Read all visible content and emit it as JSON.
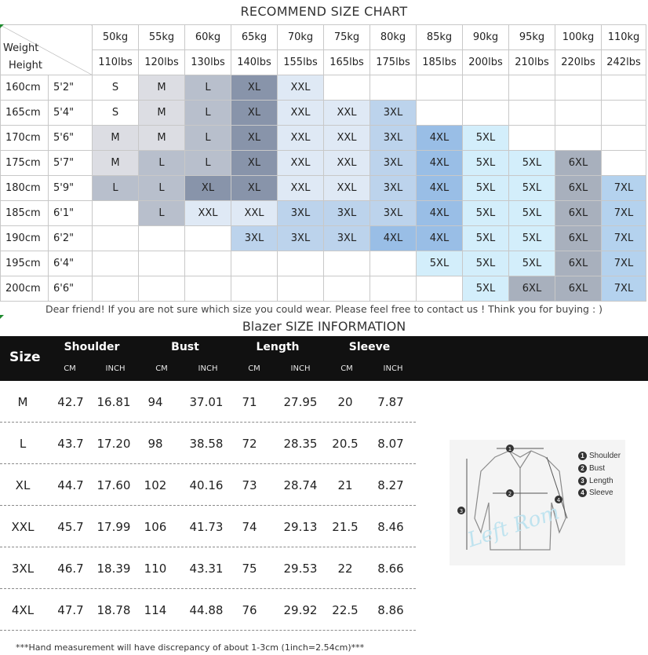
{
  "size_chart": {
    "title": "RECOMMEND SIZE CHART",
    "corner_weight": "Weight",
    "corner_height": "Height",
    "kg": [
      "50kg",
      "55kg",
      "60kg",
      "65kg",
      "70kg",
      "75kg",
      "80kg",
      "85kg",
      "90kg",
      "95kg",
      "100kg",
      "110kg"
    ],
    "lbs": [
      "110lbs",
      "120lbs",
      "130lbs",
      "140lbs",
      "155lbs",
      "165lbs",
      "175lbs",
      "185lbs",
      "200lbs",
      "210lbs",
      "220lbs",
      "242lbs"
    ],
    "rows": [
      {
        "cm": "160cm",
        "ft": "5'2\"",
        "sizes": [
          "S",
          "M",
          "L",
          "XL",
          "XXL",
          "",
          "",
          "",
          "",
          "",
          "",
          ""
        ]
      },
      {
        "cm": "165cm",
        "ft": "5'4\"",
        "sizes": [
          "S",
          "M",
          "L",
          "XL",
          "XXL",
          "XXL",
          "3XL",
          "",
          "",
          "",
          "",
          ""
        ]
      },
      {
        "cm": "170cm",
        "ft": "5'6\"",
        "sizes": [
          "M",
          "M",
          "L",
          "XL",
          "XXL",
          "XXL",
          "3XL",
          "4XL",
          "5XL",
          "",
          "",
          ""
        ]
      },
      {
        "cm": "175cm",
        "ft": "5'7\"",
        "sizes": [
          "M",
          "L",
          "L",
          "XL",
          "XXL",
          "XXL",
          "3XL",
          "4XL",
          "5XL",
          "5XL",
          "6XL",
          ""
        ]
      },
      {
        "cm": "180cm",
        "ft": "5'9\"",
        "sizes": [
          "L",
          "L",
          "XL",
          "XL",
          "XXL",
          "XXL",
          "3XL",
          "4XL",
          "5XL",
          "5XL",
          "6XL",
          "7XL"
        ]
      },
      {
        "cm": "185cm",
        "ft": "6'1\"",
        "sizes": [
          "",
          "L",
          "XXL",
          "XXL",
          "3XL",
          "3XL",
          "3XL",
          "4XL",
          "5XL",
          "5XL",
          "6XL",
          "7XL"
        ]
      },
      {
        "cm": "190cm",
        "ft": "6'2\"",
        "sizes": [
          "",
          "",
          "",
          "3XL",
          "3XL",
          "3XL",
          "4XL",
          "4XL",
          "5XL",
          "5XL",
          "6XL",
          "7XL"
        ]
      },
      {
        "cm": "195cm",
        "ft": "6'4\"",
        "sizes": [
          "",
          "",
          "",
          "",
          "",
          "",
          "",
          "5XL",
          "5XL",
          "5XL",
          "6XL",
          "7XL"
        ]
      },
      {
        "cm": "200cm",
        "ft": "6'6\"",
        "sizes": [
          "",
          "",
          "",
          "",
          "",
          "",
          "",
          "",
          "5XL",
          "6XL",
          "6XL",
          "7XL"
        ]
      }
    ],
    "cell_colors": [
      [
        "S",
        "M",
        "L",
        "XL",
        "XXL",
        "",
        "",
        "",
        "",
        "",
        "",
        ""
      ],
      [
        "S",
        "M",
        "L",
        "XL",
        "",
        "",
        "3XL",
        "",
        "",
        "",
        "",
        ""
      ],
      [
        "M",
        "M",
        "L",
        "XL",
        "",
        "",
        "",
        "4XL",
        "5XL",
        "",
        "",
        ""
      ],
      [
        "M",
        "L",
        "L",
        "XL",
        "",
        "",
        "",
        "4XL",
        "5XL",
        "5XL",
        "6XL",
        ""
      ],
      [
        "L",
        "L",
        "XL",
        "XL",
        "",
        "",
        "",
        "4XL",
        "5XL",
        "5XL",
        "6XL",
        "7XL"
      ],
      [
        "",
        "L",
        "XXL",
        "XXL",
        "",
        "",
        "",
        "4XL",
        "5XL",
        "5XL",
        "6XL",
        "7XL"
      ],
      [
        "",
        "",
        "",
        "3XL",
        "3XL",
        "3XL",
        "4XL",
        "4XL",
        "5XL",
        "5XL",
        "6XL",
        "7XL"
      ],
      [
        "",
        "",
        "",
        "",
        "",
        "",
        "",
        "5XL",
        "5XL",
        "5XL",
        "6XL",
        "7XL"
      ],
      [
        "",
        "",
        "",
        "",
        "",
        "",
        "",
        "",
        "5XL",
        "6XL",
        "6XL",
        "7XL"
      ]
    ],
    "note": "Dear friend! If you are not sure which size you could wear. Please feel free to contact us ! Think you for buying  : )"
  },
  "blazer": {
    "title": "Blazer SIZE INFORMATION",
    "header": {
      "size": "Size",
      "groups": [
        "Shoulder",
        "Bust",
        "Length",
        "Sleeve"
      ],
      "unit_cm": "CM",
      "unit_inch": "INCH"
    },
    "rows": [
      {
        "size": "M",
        "values": [
          "42.7",
          "16.81",
          "94",
          "37.01",
          "71",
          "27.95",
          "20",
          "7.87"
        ]
      },
      {
        "size": "L",
        "values": [
          "43.7",
          "17.20",
          "98",
          "38.58",
          "72",
          "28.35",
          "20.5",
          "8.07"
        ]
      },
      {
        "size": "XL",
        "values": [
          "44.7",
          "17.60",
          "102",
          "40.16",
          "73",
          "28.74",
          "21",
          "8.27"
        ]
      },
      {
        "size": "XXL",
        "values": [
          "45.7",
          "17.99",
          "106",
          "41.73",
          "74",
          "29.13",
          "21.5",
          "8.46"
        ]
      },
      {
        "size": "3XL",
        "values": [
          "46.7",
          "18.39",
          "110",
          "43.31",
          "75",
          "29.53",
          "22",
          "8.66"
        ]
      },
      {
        "size": "4XL",
        "values": [
          "47.7",
          "18.78",
          "114",
          "44.88",
          "76",
          "29.92",
          "22.5",
          "8.86"
        ]
      }
    ],
    "diagram": {
      "legend": [
        {
          "num": "1",
          "label": "Shoulder"
        },
        {
          "num": "2",
          "label": "Bust"
        },
        {
          "num": "3",
          "label": "Length"
        },
        {
          "num": "4",
          "label": "Sleeve"
        }
      ],
      "watermark": "Left Rom"
    },
    "footnote": "***Hand measurement will have discrepancy of about 1-3cm (1inch=2.54cm)***"
  },
  "colors": {
    "S": "#ffffff",
    "M": "#dcdde3",
    "L": "#b8bfcc",
    "XL": "#8894aa",
    "XXL": "#dfe9f5",
    "3XL": "#bcd3ec",
    "4XL": "#99bee6",
    "5XL": "#d3eefb",
    "6XL": "#a8b0bd",
    "7XL": "#b4d2ee",
    "header_bg": "#111111"
  }
}
